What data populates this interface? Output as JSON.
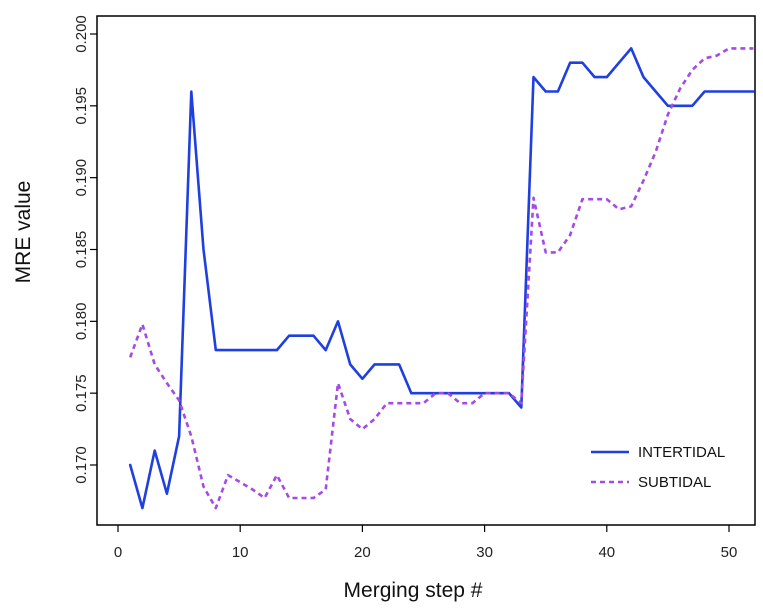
{
  "chart_data": {
    "type": "line",
    "title": "",
    "xlabel": "Merging step #",
    "ylabel": "MRE value",
    "xlim": [
      0,
      53
    ],
    "ylim": [
      0.1664,
      0.2002
    ],
    "xticks": [
      0,
      10,
      20,
      30,
      40,
      50
    ],
    "xtick_labels": [
      "0",
      "10",
      "20",
      "30",
      "40",
      "50"
    ],
    "yticks": [
      0.17,
      0.175,
      0.18,
      0.185,
      0.19,
      0.195,
      0.2
    ],
    "ytick_labels": [
      "0.170",
      "0.175",
      "0.180",
      "0.185",
      "0.190",
      "0.195",
      "0.200"
    ],
    "grid": false,
    "legend_position": "bottom-right",
    "series": [
      {
        "name": "INTERTIDAL",
        "color": "#1f3fe0",
        "style": "solid",
        "x": [
          1,
          2,
          3,
          4,
          5,
          6,
          7,
          8,
          9,
          10,
          11,
          12,
          13,
          14,
          15,
          16,
          17,
          18,
          19,
          20,
          21,
          22,
          23,
          24,
          25,
          26,
          27,
          28,
          29,
          30,
          31,
          32,
          33,
          34,
          35,
          36,
          37,
          38,
          39,
          40,
          41,
          42,
          43,
          44,
          45,
          46,
          47,
          48,
          49,
          50,
          51,
          52
        ],
        "y": [
          0.17,
          0.167,
          0.171,
          0.168,
          0.172,
          0.196,
          0.185,
          0.178,
          0.178,
          0.178,
          0.178,
          0.178,
          0.178,
          0.179,
          0.179,
          0.179,
          0.178,
          0.18,
          0.177,
          0.176,
          0.177,
          0.177,
          0.177,
          0.175,
          0.175,
          0.175,
          0.175,
          0.175,
          0.175,
          0.175,
          0.175,
          0.175,
          0.174,
          0.197,
          0.196,
          0.196,
          0.198,
          0.198,
          0.197,
          0.197,
          0.198,
          0.199,
          0.197,
          0.196,
          0.195,
          0.195,
          0.195,
          0.196,
          0.196,
          0.196,
          0.196,
          0.196
        ]
      },
      {
        "name": "SUBTIDAL",
        "color": "#a44be6",
        "style": "dashed",
        "x": [
          1,
          2,
          3,
          4,
          5,
          6,
          7,
          8,
          9,
          10,
          11,
          12,
          13,
          14,
          15,
          16,
          17,
          18,
          19,
          20,
          21,
          22,
          23,
          24,
          25,
          26,
          27,
          28,
          29,
          30,
          31,
          32,
          33,
          34,
          35,
          36,
          37,
          38,
          39,
          40,
          41,
          42,
          43,
          44,
          45,
          46,
          47,
          48,
          49,
          50,
          51,
          52
        ],
        "y": [
          0.1775,
          0.1798,
          0.177,
          0.1757,
          0.1745,
          0.172,
          0.1685,
          0.167,
          0.1693,
          0.1688,
          0.1683,
          0.1677,
          0.1693,
          0.1677,
          0.1677,
          0.1677,
          0.1683,
          0.1757,
          0.1732,
          0.1725,
          0.1732,
          0.1743,
          0.1743,
          0.1743,
          0.1743,
          0.175,
          0.175,
          0.1743,
          0.1743,
          0.175,
          0.175,
          0.175,
          0.1743,
          0.1886,
          0.1848,
          0.1848,
          0.186,
          0.1885,
          0.1885,
          0.1885,
          0.1878,
          0.188,
          0.1898,
          0.1918,
          0.1944,
          0.1962,
          0.1975,
          0.1983,
          0.1985,
          0.199,
          0.199,
          0.199
        ]
      }
    ]
  }
}
